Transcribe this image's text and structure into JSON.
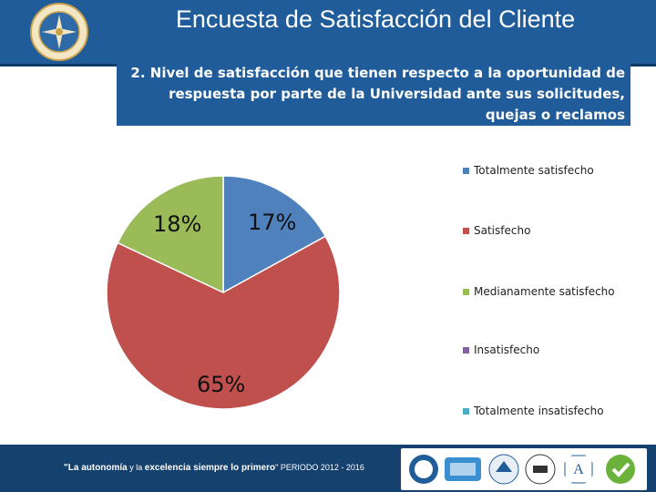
{
  "header": {
    "title": "Encuesta de Satisfacción del Cliente"
  },
  "question": {
    "text": "2. Nivel de satisfacción que tienen respecto a la oportunidad de respuesta por parte de la Universidad ante sus  solicitudes, quejas o reclamos"
  },
  "chart_data": {
    "type": "pie",
    "title": "",
    "categories": [
      "Totalmente satisfecho",
      "Satisfecho",
      "Medianamente satisfecho",
      "Insatisfecho",
      "Totalmente insatisfecho"
    ],
    "values": [
      17,
      65,
      18,
      0,
      0
    ],
    "labels": [
      "17%",
      "65%",
      "18%",
      "",
      ""
    ],
    "colors": [
      "#4f81bd",
      "#c0504d",
      "#9bbb59",
      "#8064a2",
      "#4bacc6"
    ],
    "legend_position": "right"
  },
  "footer": {
    "slogan_part1": "\"La autonomía",
    "slogan_part2": " y la ",
    "slogan_part3": "excelencia siempre lo primero",
    "slogan_part4": "\" PERIODO 2012 - 2016"
  },
  "icons": {
    "logo": "university-seal-icon",
    "badges": [
      "certification-badge-icon",
      "accreditation-badge-icon",
      "quality-badge-icon",
      "iso-badge-icon",
      "rating-badge-icon",
      "check-badge-icon"
    ]
  }
}
